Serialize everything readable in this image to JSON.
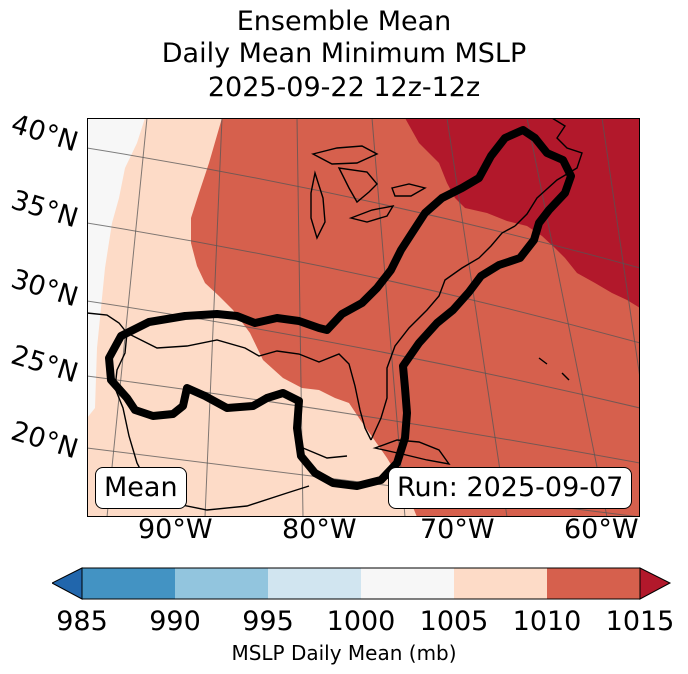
{
  "title": {
    "line1": "Ensemble Mean",
    "line2": "Daily Mean Minimum MSLP",
    "line3": "2025-09-22 12z-12z"
  },
  "map": {
    "lat_labels": [
      "40°N",
      "35°N",
      "30°N",
      "25°N",
      "20°N"
    ],
    "lon_labels": [
      "90°W",
      "80°W",
      "70°W",
      "60°W"
    ],
    "mean_label": "Mean",
    "run_label": "Run: 2025-09-07"
  },
  "colorbar": {
    "label": "MSLP Daily Mean (mb)",
    "ticks": [
      "985",
      "990",
      "995",
      "1000",
      "1005",
      "1010",
      "1015"
    ],
    "bins": [
      {
        "range": [
          985,
          990
        ],
        "color": "#4393c3"
      },
      {
        "range": [
          990,
          995
        ],
        "color": "#92c5de"
      },
      {
        "range": [
          995,
          1000
        ],
        "color": "#d1e5f0"
      },
      {
        "range": [
          1000,
          1005
        ],
        "color": "#f7f7f7"
      },
      {
        "range": [
          1005,
          1010
        ],
        "color": "#fddbc7"
      },
      {
        "range": [
          1010,
          1015
        ],
        "color": "#d6604d"
      }
    ],
    "under_color": "#2166ac",
    "over_color": "#b2182b"
  }
}
